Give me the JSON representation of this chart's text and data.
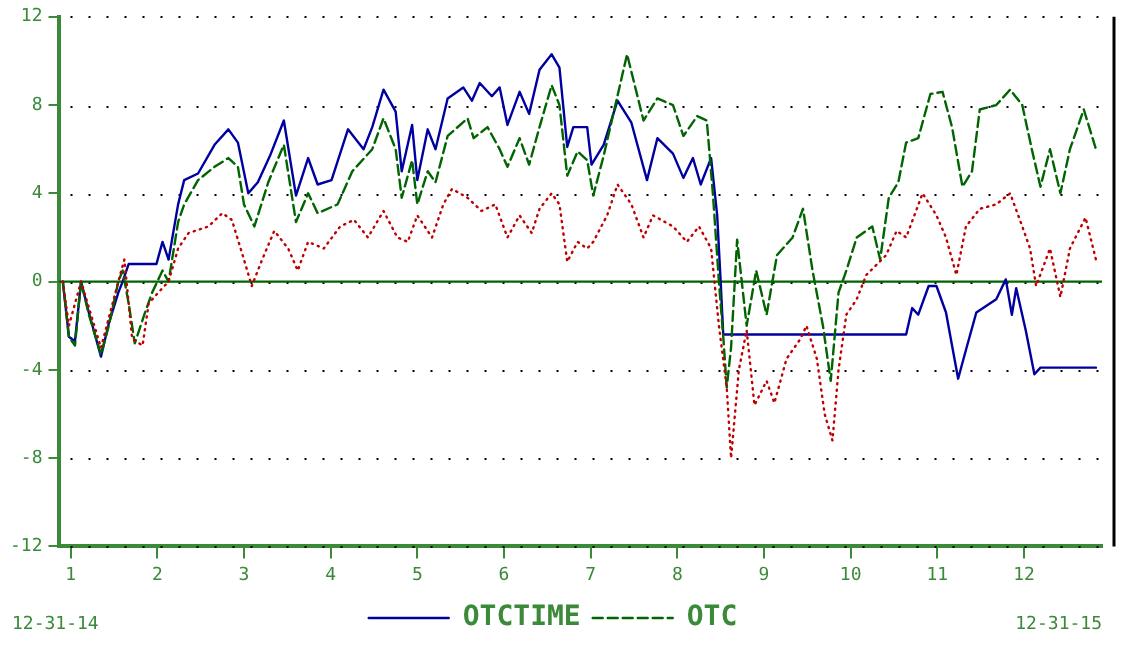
{
  "chart_data": {
    "type": "line",
    "xlim": [
      0.86,
      12.9
    ],
    "xticks": [
      1,
      2,
      3,
      4,
      5,
      6,
      7,
      8,
      9,
      10,
      11,
      12
    ],
    "ylim": [
      -12,
      12
    ],
    "yticks": [
      -12,
      -8,
      -4,
      0,
      4,
      8,
      12
    ],
    "grid": "y",
    "legend": "bottom",
    "marker": "none",
    "annotations": [
      "12-31-14",
      "12-31-15"
    ],
    "ref_lines": [
      {
        "axis": "y",
        "value": 0,
        "color": "#006400"
      }
    ],
    "series": [
      {
        "name": "OTCTIME",
        "color": "#0000a0",
        "line_style": "solid",
        "x": [
          0.91,
          0.98,
          1.05,
          1.12,
          1.21,
          1.35,
          1.44,
          1.55,
          1.6,
          1.67,
          1.99,
          2.06,
          2.13,
          2.24,
          2.31,
          2.47,
          2.66,
          2.82,
          2.93,
          3.05,
          3.16,
          3.3,
          3.46,
          3.6,
          3.74,
          3.85,
          4.01,
          4.2,
          4.38,
          4.48,
          4.61,
          4.75,
          4.82,
          4.94,
          5.0,
          5.12,
          5.21,
          5.35,
          5.53,
          5.63,
          5.72,
          5.86,
          5.95,
          6.04,
          6.18,
          6.29,
          6.41,
          6.55,
          6.64,
          6.73,
          6.8,
          6.96,
          7.01,
          7.15,
          7.31,
          7.47,
          7.65,
          7.77,
          7.95,
          8.07,
          8.18,
          8.27,
          8.39,
          8.46,
          8.5,
          8.53,
          10.64,
          10.71,
          10.78,
          10.9,
          10.99,
          11.1,
          11.24,
          11.33,
          11.45,
          11.68,
          11.79,
          11.86,
          11.91,
          12.02,
          12.12,
          12.19,
          12.83
        ],
        "values": [
          0,
          -2.5,
          -2.7,
          0,
          -1.4,
          -3.4,
          -1.9,
          -0.5,
          0,
          0.8,
          0.8,
          1.8,
          1.0,
          3.5,
          4.6,
          4.9,
          6.2,
          6.9,
          6.3,
          4.0,
          4.5,
          5.7,
          7.3,
          3.9,
          5.6,
          4.4,
          4.6,
          6.9,
          6.0,
          7.0,
          8.7,
          7.7,
          5.0,
          7.1,
          4.6,
          6.9,
          6.0,
          8.3,
          8.8,
          8.2,
          9.0,
          8.4,
          8.8,
          7.1,
          8.6,
          7.6,
          9.6,
          10.3,
          9.7,
          6.1,
          7.0,
          7.0,
          5.3,
          6.2,
          8.2,
          7.2,
          4.6,
          6.5,
          5.8,
          4.7,
          5.6,
          4.4,
          5.6,
          3.0,
          0,
          -2.4,
          -2.4,
          -1.2,
          -1.5,
          -0.2,
          -0.2,
          -1.4,
          -4.4,
          -3.1,
          -1.4,
          -0.8,
          0.1,
          -1.5,
          -0.3,
          -2.2,
          -4.2,
          -3.9,
          -3.9
        ]
      },
      {
        "name": "OTC",
        "color": "#006400",
        "line_style": "dashed",
        "x": [
          0.91,
          0.98,
          1.05,
          1.12,
          1.21,
          1.35,
          1.44,
          1.55,
          1.6,
          1.67,
          1.74,
          1.85,
          1.94,
          2.06,
          2.13,
          2.24,
          2.31,
          2.47,
          2.66,
          2.82,
          2.93,
          3.0,
          3.12,
          3.28,
          3.46,
          3.6,
          3.74,
          3.85,
          4.08,
          4.25,
          4.48,
          4.61,
          4.75,
          4.82,
          4.94,
          5.0,
          5.12,
          5.21,
          5.35,
          5.58,
          5.65,
          5.81,
          5.95,
          6.04,
          6.18,
          6.29,
          6.41,
          6.55,
          6.64,
          6.73,
          6.85,
          6.96,
          7.03,
          7.15,
          7.42,
          7.61,
          7.77,
          7.95,
          8.07,
          8.23,
          8.34,
          8.41,
          8.48,
          8.53,
          8.57,
          8.62,
          8.69,
          8.8,
          8.91,
          9.03,
          9.15,
          9.33,
          9.45,
          9.56,
          9.68,
          9.77,
          9.86,
          9.95,
          10.07,
          10.25,
          10.34,
          10.44,
          10.55,
          10.64,
          10.78,
          10.92,
          11.06,
          11.17,
          11.29,
          11.4,
          11.49,
          11.68,
          11.84,
          11.98,
          12.09,
          12.19,
          12.3,
          12.42,
          12.53,
          12.69,
          12.83
        ],
        "values": [
          0,
          -2.5,
          -2.9,
          0,
          -1.5,
          -3.3,
          -2.0,
          0,
          0.5,
          -1.0,
          -2.8,
          -1.5,
          -0.5,
          0.5,
          0,
          2.7,
          3.5,
          4.6,
          5.2,
          5.6,
          5.2,
          3.5,
          2.5,
          4.5,
          6.2,
          2.7,
          4.0,
          3.1,
          3.5,
          5.0,
          6.0,
          7.4,
          6.0,
          3.8,
          5.5,
          3.5,
          5.0,
          4.5,
          6.6,
          7.4,
          6.5,
          7.0,
          6.0,
          5.2,
          6.5,
          5.3,
          7.0,
          8.9,
          8.0,
          4.8,
          5.9,
          5.5,
          3.9,
          5.7,
          10.3,
          7.3,
          8.3,
          8.0,
          6.6,
          7.5,
          7.3,
          4.0,
          0,
          -2.5,
          -4.8,
          -3.0,
          1.9,
          -2.0,
          0.5,
          -1.5,
          1.2,
          2.0,
          3.3,
          0.5,
          -2.0,
          -4.5,
          -0.5,
          0.5,
          2.0,
          2.5,
          1.0,
          3.8,
          4.5,
          6.3,
          6.5,
          8.5,
          8.6,
          7.0,
          4.3,
          5.0,
          7.8,
          8.0,
          8.7,
          8.0,
          6.0,
          4.3,
          6.0,
          4.0,
          6.0,
          7.8,
          6.0
        ]
      },
      {
        "color": "#c00000",
        "line_style": "dotted",
        "x": [
          0.91,
          0.98,
          1.12,
          1.35,
          1.55,
          1.62,
          1.71,
          1.83,
          1.9,
          2.01,
          2.13,
          2.24,
          2.36,
          2.59,
          2.75,
          2.86,
          3.0,
          3.09,
          3.21,
          3.35,
          3.51,
          3.62,
          3.74,
          3.92,
          4.11,
          4.27,
          4.43,
          4.61,
          4.77,
          4.89,
          5.0,
          5.17,
          5.3,
          5.4,
          5.58,
          5.74,
          5.9,
          6.04,
          6.18,
          6.32,
          6.41,
          6.55,
          6.64,
          6.73,
          6.85,
          6.96,
          7.03,
          7.19,
          7.31,
          7.47,
          7.61,
          7.72,
          7.95,
          8.11,
          8.25,
          8.39,
          8.48,
          8.57,
          8.62,
          8.71,
          8.8,
          8.89,
          9.03,
          9.12,
          9.26,
          9.42,
          9.49,
          9.61,
          9.7,
          9.79,
          9.86,
          9.95,
          10.07,
          10.18,
          10.41,
          10.53,
          10.64,
          10.83,
          10.99,
          11.1,
          11.22,
          11.33,
          11.49,
          11.68,
          11.84,
          11.98,
          12.07,
          12.14,
          12.3,
          12.42,
          12.53,
          12.71,
          12.83
        ],
        "values": [
          0,
          -2.0,
          0,
          -3.0,
          0,
          1.0,
          -2.6,
          -2.9,
          -1.0,
          -0.5,
          0,
          1.5,
          2.2,
          2.5,
          3.1,
          2.8,
          1.0,
          -0.2,
          1.0,
          2.3,
          1.5,
          0.5,
          1.8,
          1.5,
          2.5,
          2.8,
          2.0,
          3.2,
          2.0,
          1.8,
          3.0,
          2.0,
          3.5,
          4.2,
          3.8,
          3.2,
          3.5,
          2.0,
          3.0,
          2.2,
          3.3,
          4.0,
          3.5,
          0.9,
          1.8,
          1.5,
          1.8,
          3.0,
          4.4,
          3.5,
          2.0,
          3.0,
          2.5,
          1.8,
          2.5,
          1.5,
          -2.0,
          -4.8,
          -8.0,
          -4.0,
          -2.2,
          -5.6,
          -4.5,
          -5.5,
          -3.5,
          -2.6,
          -2.0,
          -3.5,
          -6.0,
          -7.2,
          -4.0,
          -1.5,
          -0.8,
          0.3,
          1.2,
          2.3,
          2.0,
          4.0,
          3.0,
          2.0,
          0.3,
          2.5,
          3.3,
          3.5,
          4.0,
          2.5,
          1.5,
          -0.2,
          1.5,
          -0.7,
          1.5,
          2.9,
          1.0
        ]
      }
    ]
  }
}
